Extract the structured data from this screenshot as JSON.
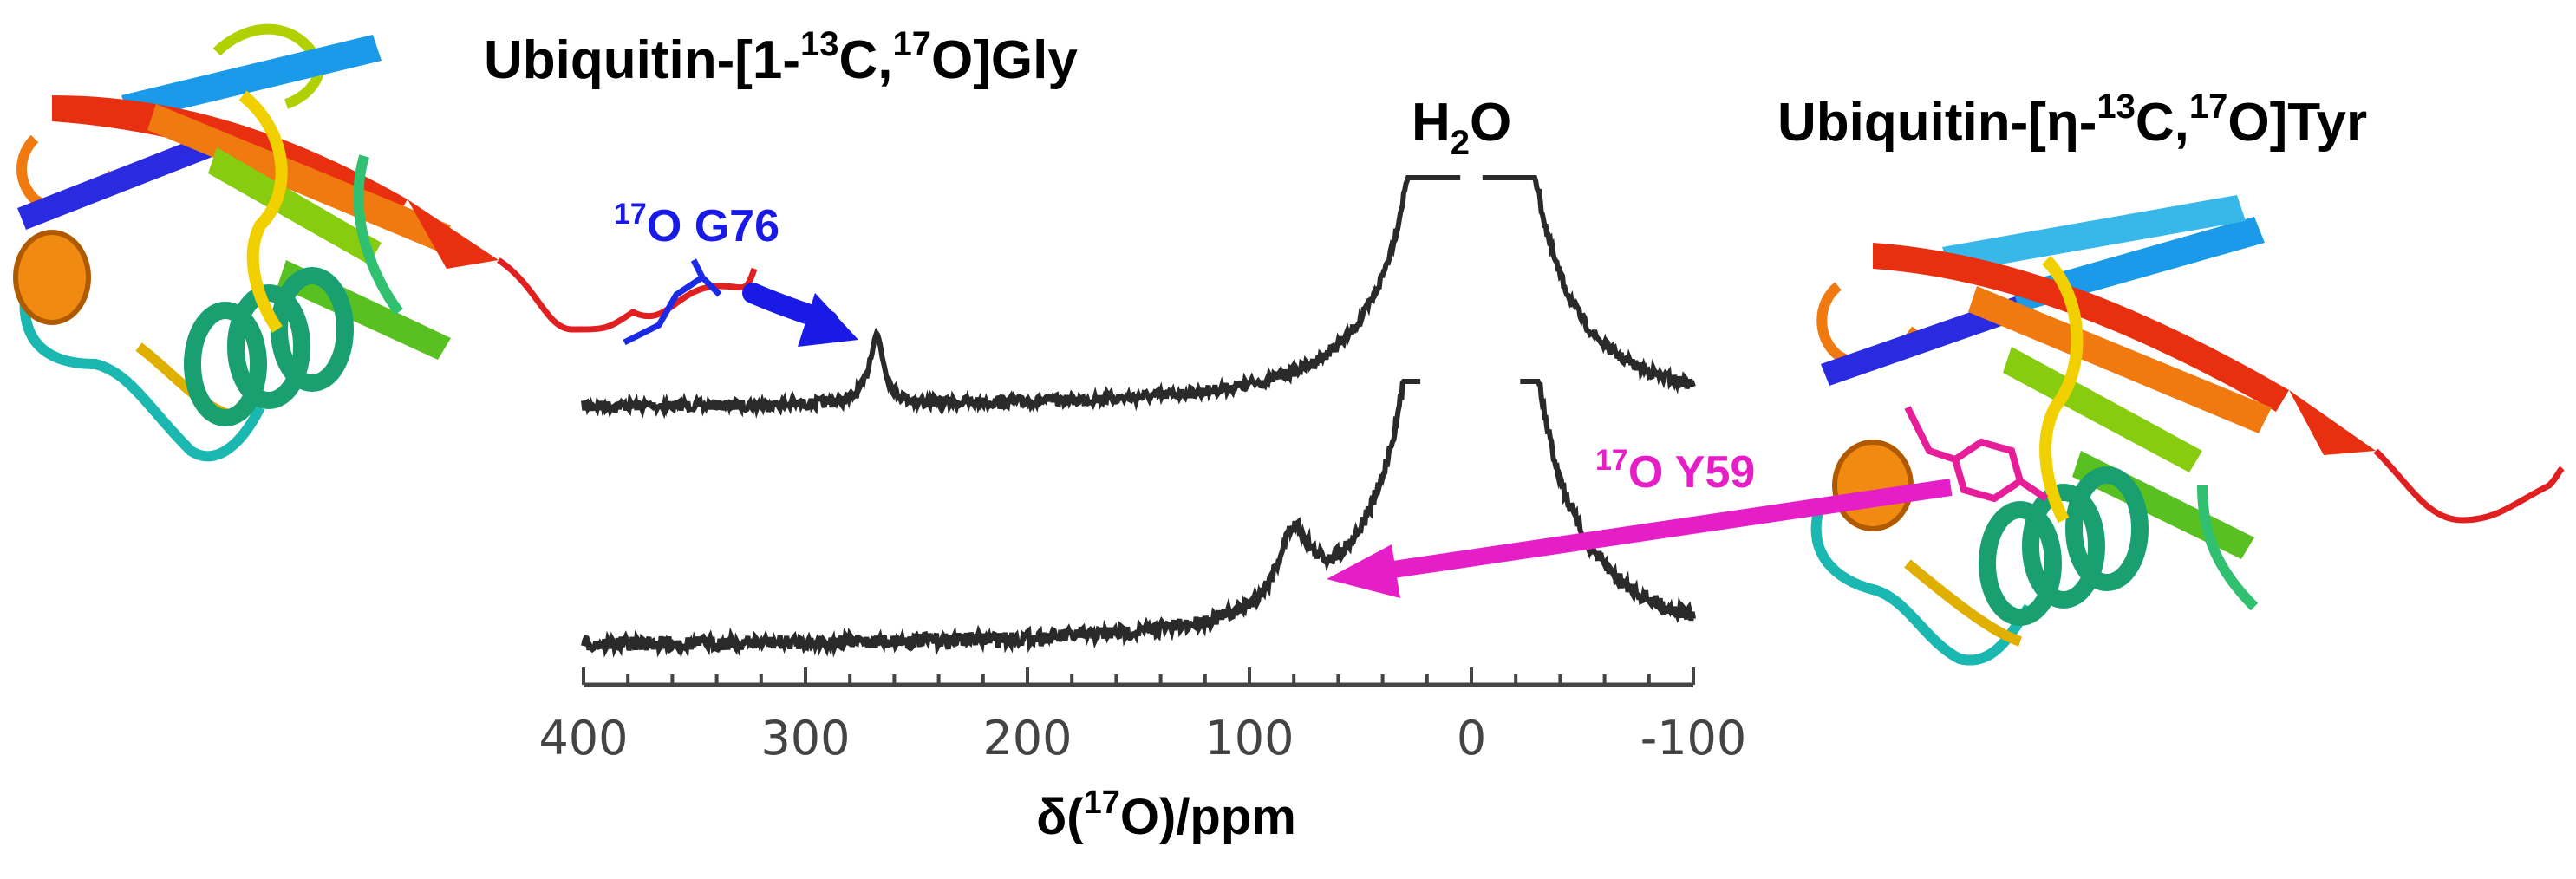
{
  "title_left": {
    "pre": "Ubiquitin-[1-",
    "sup1": "13",
    "mid": "C,",
    "sup2": "17",
    "post": "O]Gly"
  },
  "title_right": {
    "pre": "Ubiquitin-[η-",
    "sup1": "13",
    "mid": "C,",
    "sup2": "17",
    "post": "O]Tyr"
  },
  "water_label": {
    "pre": "H",
    "sub": "2",
    "post": "O"
  },
  "label_g76": {
    "sup": "17",
    "text": "O G76"
  },
  "label_y59": {
    "sup": "17",
    "text": "O Y59"
  },
  "x_axis": {
    "label_pre": "δ(",
    "label_sup": "17",
    "label_post": "O)/ppm",
    "ticks": [
      "400",
      "300",
      "200",
      "100",
      "0",
      "-100"
    ]
  },
  "colors": {
    "spectrum": "#2a2a2a",
    "g76": "#1a1ae6",
    "y59": "#e61ec8"
  },
  "chart_data": {
    "type": "line",
    "x_axis_reversed": true,
    "xlim": [
      400,
      -100
    ],
    "xlabel": "δ(17O)/ppm",
    "series": [
      {
        "peaks_ppm": [
          268,
          0
        ]
      },
      {
        "peaks_ppm": [
          80,
          0
        ]
      }
    ],
    "annotations": [
      "17O G76",
      "17O Y59",
      "H2O"
    ]
  }
}
